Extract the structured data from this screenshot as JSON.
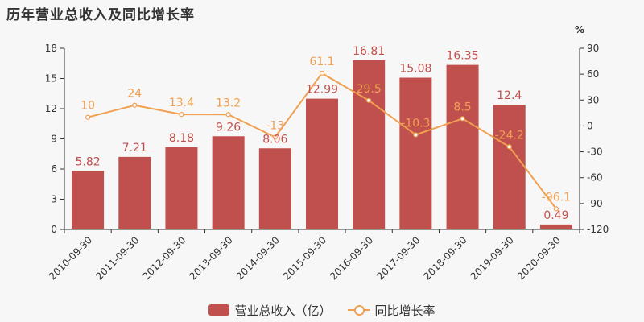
{
  "chart_data": {
    "type": "bar+line",
    "title": "历年营业总收入及同比增长率",
    "categories": [
      "2010-09-30",
      "2011-09-30",
      "2012-09-30",
      "2013-09-30",
      "2014-09-30",
      "2015-09-30",
      "2016-09-30",
      "2017-09-30",
      "2018-09-30",
      "2019-09-30",
      "2020-09-30"
    ],
    "series": [
      {
        "name": "营业总收入（亿）",
        "type": "bar",
        "axis": "left",
        "values": [
          5.82,
          7.21,
          8.18,
          9.26,
          8.06,
          12.99,
          16.81,
          15.08,
          16.35,
          12.4,
          0.49
        ],
        "labels": [
          "5.82",
          "7.21",
          "8.18",
          "9.26",
          "8.06",
          "12.99",
          "16.81",
          "15.08",
          "16.35",
          "12.4",
          "0.49"
        ],
        "color": "#c0504d"
      },
      {
        "name": "同比增长率",
        "type": "line",
        "axis": "right",
        "values": [
          10,
          24,
          13.4,
          13.2,
          -13,
          61.1,
          29.5,
          -10.3,
          8.5,
          -24.2,
          -96.1
        ],
        "labels": [
          "10",
          "24",
          "13.4",
          "13.2",
          "-13",
          "61.1",
          "29.5",
          "-10.3",
          "8.5",
          "-24.2",
          "-96.1"
        ],
        "color": "#f0a050"
      }
    ],
    "y_left": {
      "min": 0,
      "max": 18,
      "ticks": [
        "0",
        "3",
        "6",
        "9",
        "12",
        "15",
        "18"
      ]
    },
    "y_right": {
      "min": -120,
      "max": 90,
      "unit": "%",
      "ticks": [
        "-120",
        "-90",
        "-60",
        "-30",
        "0",
        "30",
        "60",
        "90"
      ]
    },
    "grid": false,
    "legend_position": "bottom"
  }
}
